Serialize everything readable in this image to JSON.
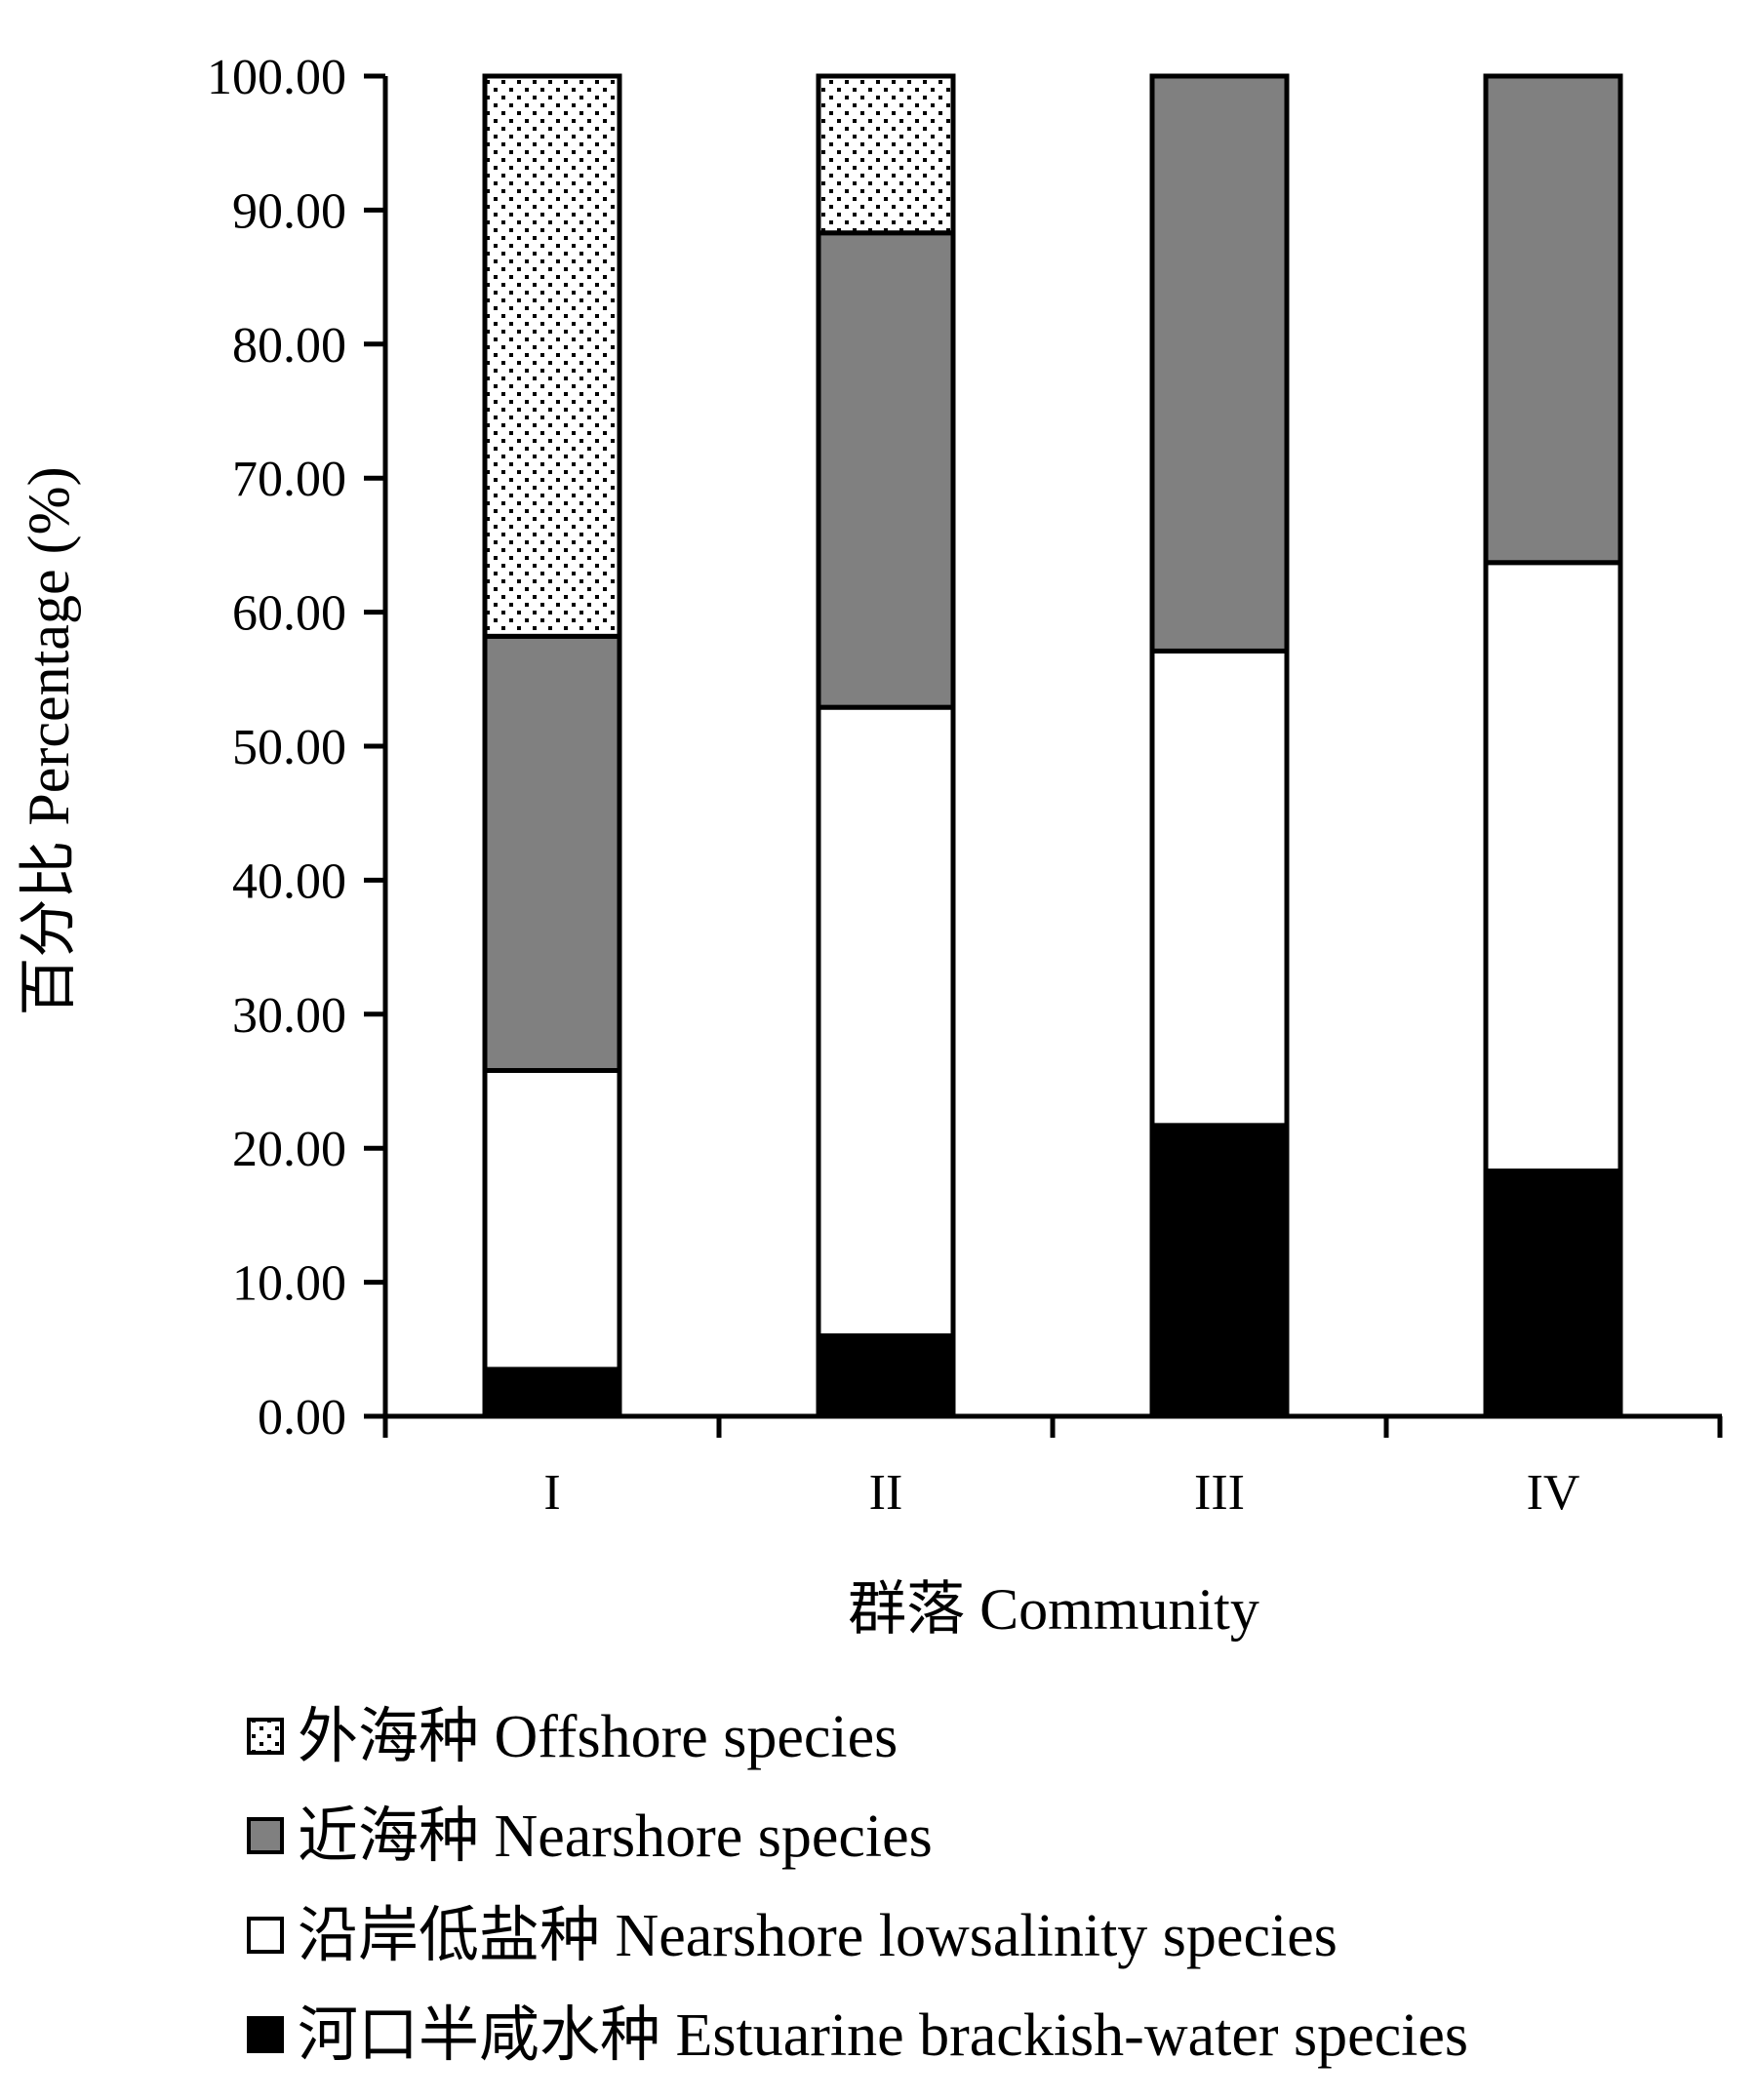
{
  "chart_data": {
    "type": "bar",
    "stacked": true,
    "categories": [
      "I",
      "II",
      "III",
      "IV"
    ],
    "series": [
      {
        "name": "河口半咸水种 Estuarine brackish-water species",
        "values": [
          3.5,
          6.0,
          21.7,
          18.3
        ],
        "color": "#000000",
        "pattern": "solid"
      },
      {
        "name": "沿岸低盐种 Nearshore lowsalinity species",
        "values": [
          22.3,
          46.9,
          35.4,
          45.4
        ],
        "color": "#ffffff",
        "pattern": "solid"
      },
      {
        "name": "近海种 Nearshore species",
        "values": [
          32.4,
          35.4,
          42.9,
          36.3
        ],
        "color": "#808080",
        "pattern": "solid"
      },
      {
        "name": "外海种 Offshore species",
        "values": [
          41.8,
          11.7,
          0,
          0
        ],
        "color": "#ffffff",
        "pattern": "dots"
      }
    ],
    "xlabel": "群落  Community",
    "ylabel": "百分比  Percentage (%)",
    "ylim": [
      0,
      100
    ],
    "yticks": [
      "0.00",
      "10.00",
      "20.00",
      "30.00",
      "40.00",
      "50.00",
      "60.00",
      "70.00",
      "80.00",
      "90.00",
      "100.00"
    ],
    "grid": false,
    "legend_position": "bottom",
    "legend_order": [
      "外海种 Offshore species",
      "近海种 Nearshore species",
      "沿岸低盐种 Nearshore lowsalinity species",
      "河口半咸水种 Estuarine brackish-water species"
    ]
  }
}
